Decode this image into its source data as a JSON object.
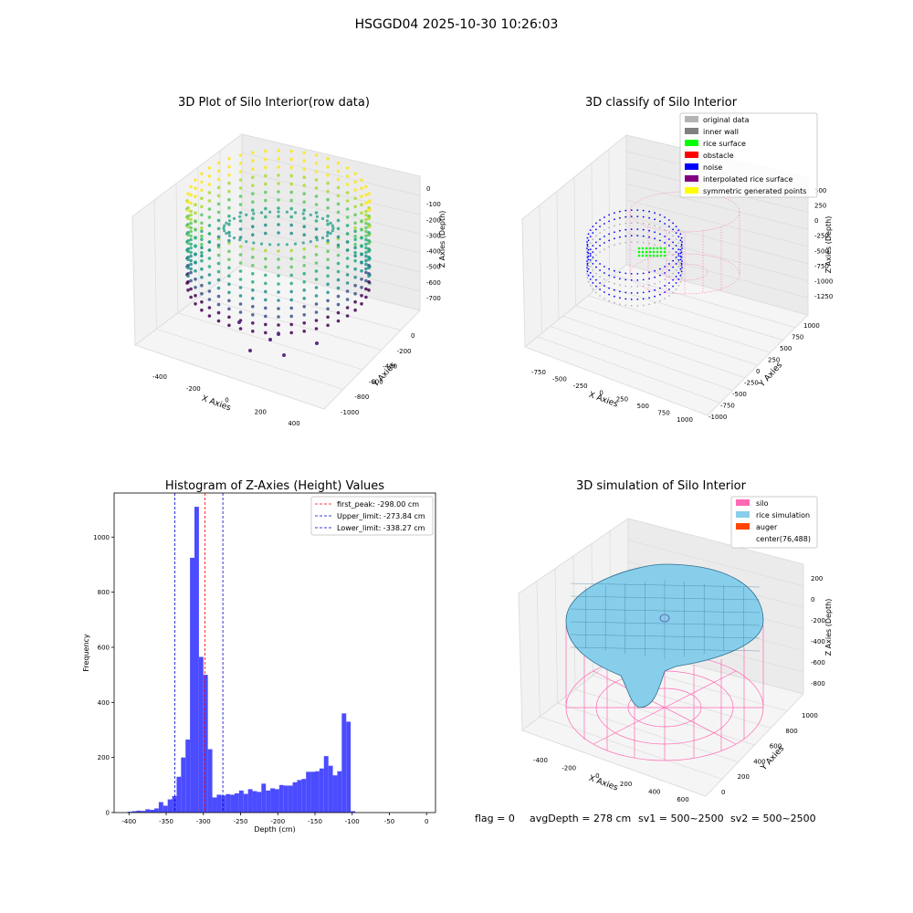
{
  "suptitle": "HSGGD04 2025-10-30 10:26:03",
  "footer": {
    "flag": "flag = 0",
    "avg": "avgDepth = 278 cm",
    "sv1": "sv1 = 500~2500",
    "sv2": "sv2 = 500~2500"
  },
  "chart_data": [
    {
      "type": "scatter",
      "title": "3D Plot of Silo Interior(row data)",
      "xlabel": "X Axies",
      "ylabel": "Y Axies",
      "zlabel": "Z Axies (Depth)",
      "xticks": [
        "-400",
        "-200",
        "0",
        "200",
        "400"
      ],
      "yticks": [
        "-1000",
        "-800",
        "-600",
        "-400",
        "-200",
        "0"
      ],
      "zticks": [
        "-700",
        "-600",
        "-500",
        "-400",
        "-300",
        "-200",
        "-100",
        "0"
      ],
      "colormap": "viridis"
    },
    {
      "type": "scatter",
      "title": "3D classify of Silo Interior",
      "xlabel": "X Axies",
      "ylabel": "Y Axies",
      "zlabel": "Z Axies (Depth)",
      "xticks": [
        "-750",
        "-500",
        "-250",
        "0",
        "250",
        "500",
        "750",
        "1000"
      ],
      "yticks": [
        "-1000",
        "-750",
        "-500",
        "-250",
        "0",
        "250",
        "500",
        "750",
        "1000"
      ],
      "zticks": [
        "-1250",
        "-1000",
        "-750",
        "-500",
        "-250",
        "0",
        "250",
        "500"
      ],
      "legend": [
        {
          "name": "original data",
          "color": "#b3b3b3"
        },
        {
          "name": "inner wall",
          "color": "#808080"
        },
        {
          "name": "rice surface",
          "color": "#00ff00"
        },
        {
          "name": "obstacle",
          "color": "#ff0000"
        },
        {
          "name": "noise",
          "color": "#0000ff"
        },
        {
          "name": "interpolated rice surface",
          "color": "#800080"
        },
        {
          "name": "symmetric generated points",
          "color": "#ffff00"
        }
      ]
    },
    {
      "type": "bar",
      "title": "Histogram of Z-Axies (Height) Values",
      "xlabel": "Depth (cm)",
      "ylabel": "Frequency",
      "xlim": [
        -420,
        12
      ],
      "ylim": [
        0,
        1160
      ],
      "xticks": [
        -400,
        -350,
        -300,
        -250,
        -200,
        -150,
        -100,
        -50,
        0
      ],
      "yticks": [
        0,
        200,
        400,
        600,
        800,
        1000
      ],
      "bin_width": 6,
      "bins_start": [
        -402,
        -396,
        -390,
        -384,
        -378,
        -372,
        -366,
        -360,
        -354,
        -348,
        -342,
        -336,
        -330,
        -324,
        -318,
        -312,
        -306,
        -300,
        -294,
        -288,
        -282,
        -276,
        -270,
        -264,
        -258,
        -252,
        -246,
        -240,
        -234,
        -228,
        -222,
        -216,
        -210,
        -204,
        -198,
        -192,
        -186,
        -180,
        -174,
        -168,
        -162,
        -156,
        -150,
        -144,
        -138,
        -132,
        -126,
        -120,
        -114,
        -108,
        -102,
        -96,
        -90,
        -84,
        -78,
        -72,
        -66,
        -60,
        -54,
        -48,
        -42,
        -36,
        -30,
        -24,
        -18,
        -12,
        -6
      ],
      "values": [
        3,
        5,
        7,
        6,
        12,
        10,
        15,
        38,
        25,
        48,
        60,
        130,
        200,
        265,
        925,
        1110,
        565,
        500,
        230,
        55,
        65,
        62,
        67,
        65,
        70,
        80,
        68,
        85,
        78,
        75,
        105,
        80,
        88,
        85,
        100,
        98,
        98,
        110,
        118,
        122,
        148,
        148,
        150,
        160,
        205,
        170,
        135,
        150,
        360,
        330,
        5,
        0,
        0,
        0,
        0,
        0,
        0,
        0,
        0,
        0,
        0,
        0,
        0,
        0,
        0,
        0,
        0
      ],
      "bar_color": "#4b4bff",
      "lines": [
        {
          "label": "first_peak: -298.00 cm",
          "x": -298.0,
          "color": "#ff0000"
        },
        {
          "label": "Upper_limit: -273.84 cm",
          "x": -273.84,
          "color": "#0000cc"
        },
        {
          "label": "Lower_limit: -338.27 cm",
          "x": -338.27,
          "color": "#0000cc"
        }
      ]
    },
    {
      "type": "area",
      "title": "3D simulation of Silo Interior",
      "xlabel": "X Axies",
      "ylabel": "Y Axies",
      "zlabel": "Z Axies (Depth)",
      "xticks": [
        "-400",
        "-200",
        "0",
        "200",
        "400",
        "600"
      ],
      "yticks": [
        "0",
        "200",
        "400",
        "600",
        "800",
        "1000"
      ],
      "zticks": [
        "-800",
        "-600",
        "-400",
        "-200",
        "0",
        "200"
      ],
      "legend": [
        {
          "name": "silo",
          "color": "#ff69b4"
        },
        {
          "name": "rice simulation",
          "color": "#87ceeb"
        },
        {
          "name": "auger",
          "color": "#ff4500"
        },
        {
          "name": "center(76,488)",
          "color": ""
        }
      ]
    }
  ]
}
